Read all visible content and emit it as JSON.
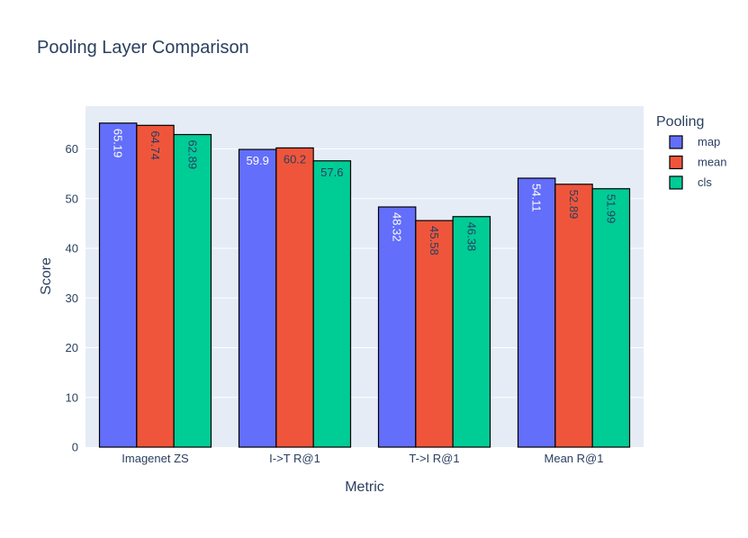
{
  "chart_data": {
    "type": "bar",
    "title": "Pooling Layer Comparison",
    "xlabel": "Metric",
    "ylabel": "Score",
    "categories": [
      "Imagenet ZS",
      "I->T R@1",
      "T->I R@1",
      "Mean R@1"
    ],
    "series": [
      {
        "name": "map",
        "values": [
          65.19,
          59.9,
          48.32,
          54.11
        ],
        "labels": [
          "65.19",
          "59.9",
          "48.32",
          "54.11"
        ],
        "color": "#636EFA"
      },
      {
        "name": "mean",
        "values": [
          64.74,
          60.2,
          45.58,
          52.89
        ],
        "labels": [
          "64.74",
          "60.2",
          "45.58",
          "52.89"
        ],
        "color": "#EF553B"
      },
      {
        "name": "cls",
        "values": [
          62.89,
          57.6,
          46.38,
          51.99
        ],
        "labels": [
          "62.89",
          "57.6",
          "46.38",
          "51.99"
        ],
        "color": "#00CC96"
      }
    ],
    "ylim": [
      0,
      68.6
    ],
    "yticks": [
      0,
      10,
      20,
      30,
      40,
      50,
      60
    ],
    "legend_title": "Pooling",
    "legend_position": "top-right",
    "grid": true,
    "plot_background": "#E5ECF6",
    "text_color": "#2A3F5F"
  }
}
